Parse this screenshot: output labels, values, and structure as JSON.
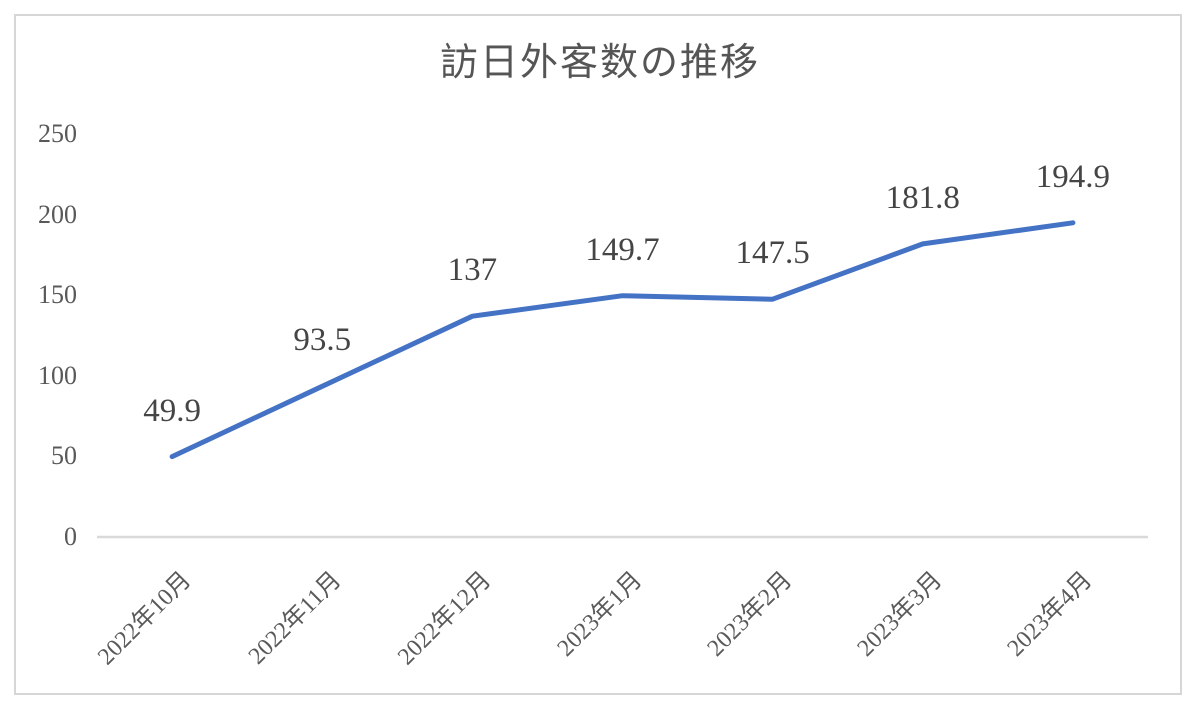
{
  "chart_data": {
    "type": "line",
    "title": "訪日外客数の推移",
    "categories": [
      "2022年10月",
      "2022年11月",
      "2022年12月",
      "2023年1月",
      "2023年2月",
      "2023年3月",
      "2023年4月"
    ],
    "values": [
      49.9,
      93.5,
      137,
      149.7,
      147.5,
      181.8,
      194.9
    ],
    "value_labels": [
      "49.9",
      "93.5",
      "137",
      "149.7",
      "147.5",
      "181.8",
      "194.9"
    ],
    "xlabel": "",
    "ylabel": "",
    "ylim": [
      0,
      250
    ],
    "yticks": [
      0,
      50,
      100,
      150,
      200,
      250
    ],
    "grid": false,
    "legend": "none",
    "colors": {
      "line": "#4472C4",
      "axis_line": "#D9D9D9",
      "axis_text": "#595959",
      "label_text": "#454545",
      "title_text": "#555555",
      "frame_border": "#D6D6D6",
      "background": "#FFFFFF"
    }
  }
}
